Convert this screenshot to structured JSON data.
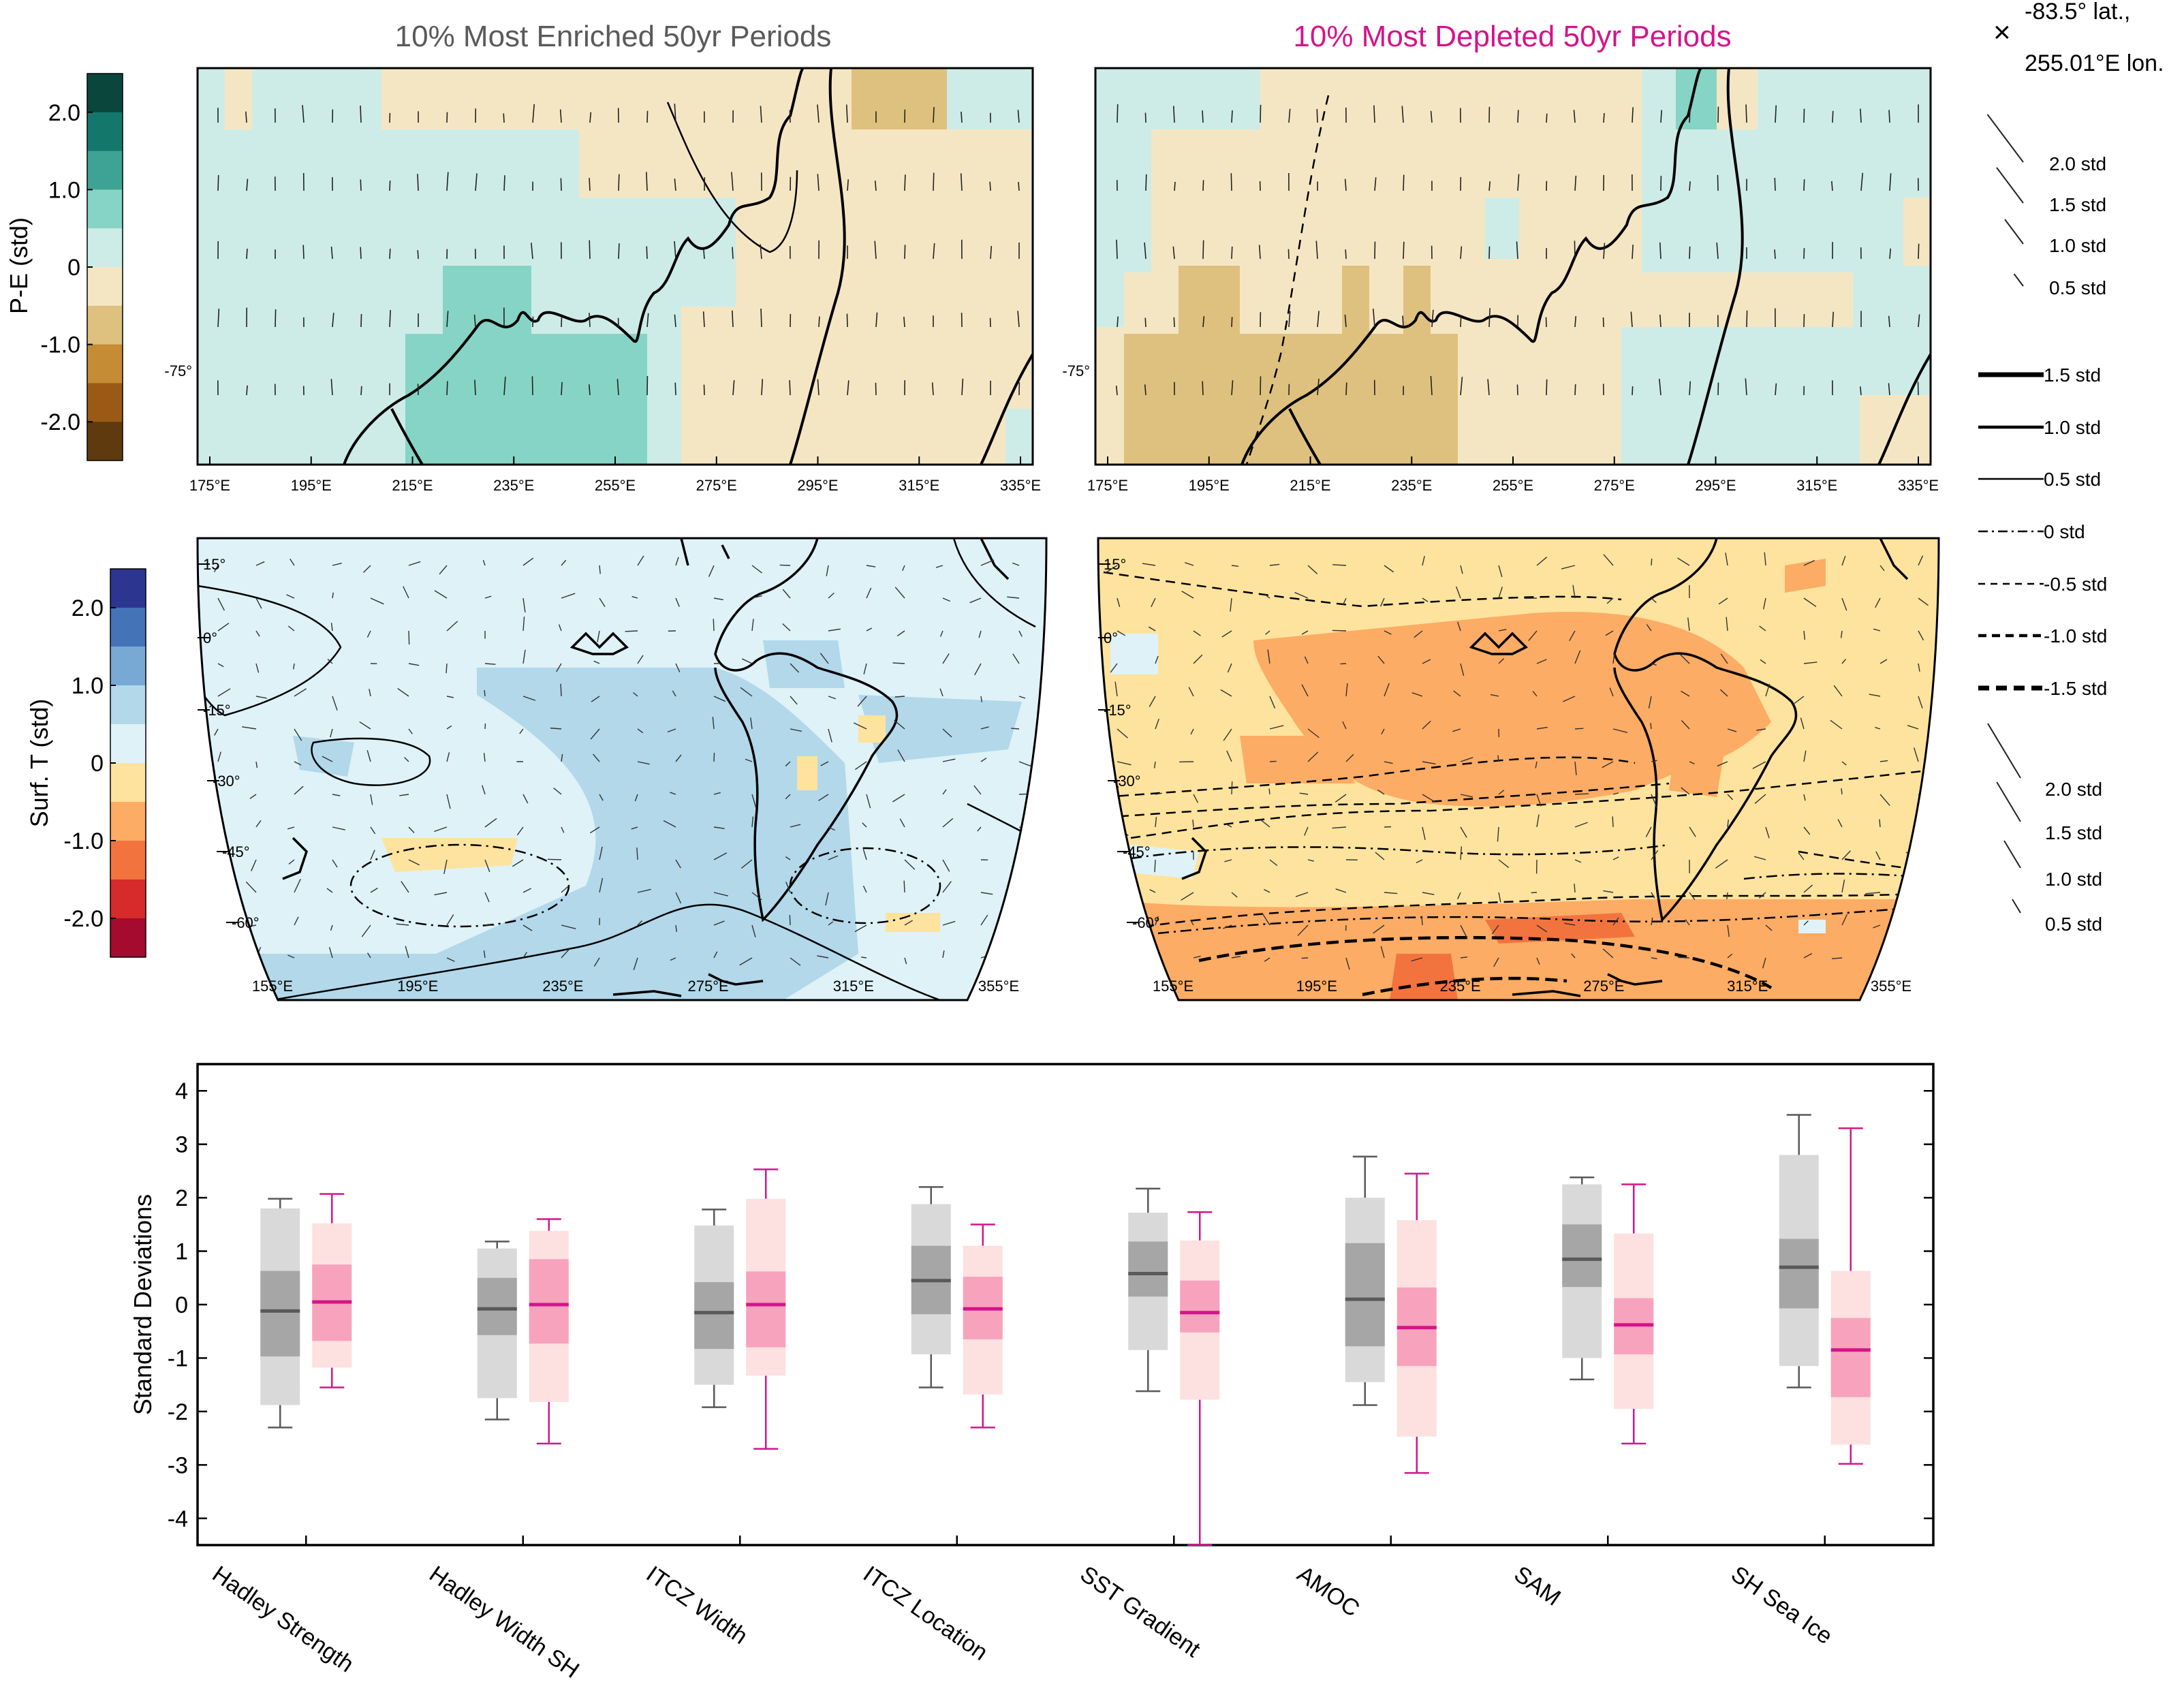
{
  "titles": {
    "enriched": "10% Most Enriched 50yr Periods",
    "depleted": "10% Most Depleted 50yr Periods",
    "enriched_color": "#5a5a5a",
    "depleted_color": "#d4148a"
  },
  "site_marker": {
    "symbol": "×",
    "line1": "-83.5° lat.,",
    "line2": "255.01°E lon."
  },
  "pe_colorbar": {
    "label": "P-E (std)",
    "ticks": [
      "2.0",
      "1.0",
      "0",
      "-1.0",
      "-2.0"
    ],
    "colors": [
      "#0b463c",
      "#14776b",
      "#3ea394",
      "#86d4c5",
      "#cdece7",
      "#f5e6c3",
      "#dec17e",
      "#c58b35",
      "#9a5a16",
      "#5f3a0f"
    ]
  },
  "t_colorbar": {
    "label": "Surf. T (std)",
    "ticks": [
      "2.0",
      "1.0",
      "0",
      "-1.0",
      "-2.0"
    ],
    "colors": [
      "#2c3691",
      "#4473b8",
      "#78a9d4",
      "#b2d8ea",
      "#def2f7",
      "#fde39d",
      "#fcac64",
      "#f3733f",
      "#d62a2b",
      "#a50a2f"
    ]
  },
  "map_labels": {
    "pe_lon_ticks": [
      "175°E",
      "195°E",
      "215°E",
      "235°E",
      "255°E",
      "275°E",
      "295°E",
      "315°E",
      "335°E"
    ],
    "pe_lat_tick": "-75°",
    "t_lon_ticks": [
      "155°E",
      "195°E",
      "235°E",
      "275°E",
      "315°E",
      "355°E"
    ],
    "t_lat_ticks": [
      "15°",
      "0°",
      "-15°",
      "-30°",
      "-45°",
      "-60°"
    ]
  },
  "legends": {
    "pe_vectors": [
      "2.0 std",
      "1.5 std",
      "1.0 std",
      "0.5 std"
    ],
    "contours": [
      "1.5 std",
      "1.0 std",
      "0.5 std",
      "0 std",
      "-0.5 std",
      "-1.0 std",
      "-1.5 std"
    ],
    "t_vectors": [
      "2.0 std",
      "1.5 std",
      "1.0 std",
      "0.5 std"
    ]
  },
  "chart_data": {
    "type": "box",
    "ylabel": "Standard Deviations",
    "ylim": [
      -4.5,
      4.5
    ],
    "yticks": [
      -4,
      -3,
      -2,
      -1,
      0,
      1,
      2,
      3,
      4
    ],
    "categories": [
      "Hadley Strength",
      "Hadley Width SH",
      "ITCZ Width",
      "ITCZ Location",
      "SST Gradient",
      "AMOC",
      "SAM",
      "SH Sea Ice"
    ],
    "series": [
      {
        "color": "#595959",
        "outer_fill": "#d9d9d9",
        "inner_fill": "#a6a6a6",
        "boxes": [
          {
            "whisker_low": -2.3,
            "outer_low": -1.88,
            "inner_low": -0.97,
            "median": -0.12,
            "inner_high": 0.63,
            "outer_high": 1.8,
            "whisker_high": 1.98
          },
          {
            "whisker_low": -2.15,
            "outer_low": -1.75,
            "inner_low": -0.57,
            "median": -0.08,
            "inner_high": 0.5,
            "outer_high": 1.05,
            "whisker_high": 1.18
          },
          {
            "whisker_low": -1.92,
            "outer_low": -1.5,
            "inner_low": -0.83,
            "median": -0.15,
            "inner_high": 0.42,
            "outer_high": 1.48,
            "whisker_high": 1.78
          },
          {
            "whisker_low": -1.55,
            "outer_low": -0.93,
            "inner_low": -0.18,
            "median": 0.45,
            "inner_high": 1.1,
            "outer_high": 1.88,
            "whisker_high": 2.2
          },
          {
            "whisker_low": -1.62,
            "outer_low": -0.85,
            "inner_low": 0.15,
            "median": 0.58,
            "inner_high": 1.18,
            "outer_high": 1.72,
            "whisker_high": 2.17
          },
          {
            "whisker_low": -1.88,
            "outer_low": -1.45,
            "inner_low": -0.78,
            "median": 0.1,
            "inner_high": 1.15,
            "outer_high": 2.0,
            "whisker_high": 2.77
          },
          {
            "whisker_low": -1.4,
            "outer_low": -1.0,
            "inner_low": 0.33,
            "median": 0.85,
            "inner_high": 1.5,
            "outer_high": 2.25,
            "whisker_high": 2.38
          },
          {
            "whisker_low": -1.55,
            "outer_low": -1.15,
            "inner_low": -0.07,
            "median": 0.7,
            "inner_high": 1.23,
            "outer_high": 2.8,
            "whisker_high": 3.55
          }
        ]
      },
      {
        "color": "#d4148a",
        "outer_fill": "#fde0e0",
        "inner_fill": "#f7a3bd",
        "boxes": [
          {
            "whisker_low": -1.55,
            "outer_low": -1.18,
            "inner_low": -0.68,
            "median": 0.05,
            "inner_high": 0.75,
            "outer_high": 1.52,
            "whisker_high": 2.07
          },
          {
            "whisker_low": -2.6,
            "outer_low": -1.82,
            "inner_low": -0.73,
            "median": 0.0,
            "inner_high": 0.85,
            "outer_high": 1.38,
            "whisker_high": 1.6
          },
          {
            "whisker_low": -2.7,
            "outer_low": -1.33,
            "inner_low": -0.8,
            "median": 0.0,
            "inner_high": 0.62,
            "outer_high": 1.98,
            "whisker_high": 2.53
          },
          {
            "whisker_low": -2.3,
            "outer_low": -1.68,
            "inner_low": -0.65,
            "median": -0.08,
            "inner_high": 0.52,
            "outer_high": 1.1,
            "whisker_high": 1.5
          },
          {
            "whisker_low": -4.5,
            "outer_low": -1.78,
            "inner_low": -0.52,
            "median": -0.15,
            "inner_high": 0.45,
            "outer_high": 1.2,
            "whisker_high": 1.73
          },
          {
            "whisker_low": -3.15,
            "outer_low": -2.47,
            "inner_low": -1.15,
            "median": -0.43,
            "inner_high": 0.32,
            "outer_high": 1.58,
            "whisker_high": 2.45
          },
          {
            "whisker_low": -2.6,
            "outer_low": -1.95,
            "inner_low": -0.93,
            "median": -0.38,
            "inner_high": 0.12,
            "outer_high": 1.33,
            "whisker_high": 2.25
          },
          {
            "whisker_low": -2.98,
            "outer_low": -2.62,
            "inner_low": -1.73,
            "median": -0.85,
            "inner_high": -0.25,
            "outer_high": 0.63,
            "whisker_high": 3.3
          }
        ]
      }
    ]
  }
}
